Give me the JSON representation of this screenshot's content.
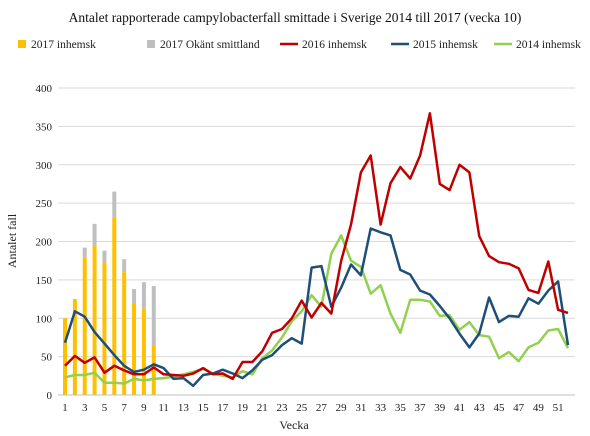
{
  "chart_data": {
    "type": "bar+line",
    "title": "Antalet  rapporterade campylobacterfall smittade i Sverige 2014 till  2017 (vecka 10)",
    "xlabel": "Vecka",
    "ylabel": "Antalet fall",
    "ylim": [
      0,
      400
    ],
    "yticks": [
      0,
      50,
      100,
      150,
      200,
      250,
      300,
      350,
      400
    ],
    "xlim": [
      1,
      52
    ],
    "xticks": [
      1,
      3,
      5,
      7,
      9,
      11,
      13,
      15,
      17,
      19,
      21,
      23,
      25,
      27,
      29,
      31,
      33,
      35,
      37,
      39,
      41,
      43,
      45,
      47,
      49,
      51
    ],
    "grid": "horizontal",
    "legend_position": "top",
    "colors": {
      "bar_2017_inhemsk": "#ffc000",
      "bar_2017_okant": "#bfbfbf",
      "line_2016": "#c00000",
      "line_2015": "#1f4e79",
      "line_2014": "#92d050"
    },
    "stacked_bars": {
      "x": [
        1,
        2,
        3,
        4,
        5,
        6,
        7,
        8,
        9,
        10
      ],
      "series": [
        {
          "name": "2017 inhemsk",
          "values": [
            100,
            125,
            180,
            195,
            173,
            232,
            160,
            120,
            113,
            65
          ]
        },
        {
          "name": "2017 Okänt smittland",
          "values": [
            0,
            0,
            12,
            28,
            15,
            33,
            17,
            18,
            34,
            77
          ]
        }
      ]
    },
    "lines": [
      {
        "name": "2016 inhemsk",
        "values": [
          38,
          51,
          42,
          49,
          29,
          38,
          32,
          27,
          27,
          36,
          27,
          26,
          25,
          28,
          35,
          27,
          28,
          21,
          43,
          43,
          57,
          81,
          86,
          100,
          123,
          101,
          120,
          106,
          175,
          222,
          290,
          312,
          222,
          276,
          297,
          282,
          312,
          367,
          275,
          267,
          300,
          290,
          207,
          181,
          173,
          171,
          165,
          137,
          133,
          174,
          111,
          107
        ]
      },
      {
        "name": "2015 inhemsk",
        "values": [
          68,
          109,
          102,
          82,
          67,
          52,
          38,
          30,
          33,
          40,
          35,
          21,
          22,
          12,
          26,
          28,
          33,
          28,
          22,
          32,
          46,
          52,
          65,
          74,
          67,
          166,
          168,
          115,
          140,
          170,
          156,
          217,
          212,
          208,
          163,
          157,
          136,
          131,
          116,
          100,
          80,
          62,
          80,
          127,
          95,
          103,
          102,
          126,
          119,
          136,
          148,
          65
        ]
      },
      {
        "name": "2014 inhemsk",
        "values": [
          23,
          26,
          26,
          29,
          16,
          16,
          15,
          21,
          19,
          21,
          22,
          24,
          27,
          30,
          34,
          28,
          25,
          23,
          31,
          27,
          48,
          58,
          75,
          96,
          109,
          130,
          115,
          184,
          208,
          175,
          167,
          132,
          143,
          106,
          81,
          124,
          124,
          122,
          103,
          104,
          85,
          95,
          78,
          76,
          48,
          56,
          44,
          62,
          68,
          84,
          86,
          61
        ]
      }
    ]
  },
  "legend": [
    {
      "label": "2017 inhemsk",
      "kind": "box",
      "color": "#ffc000"
    },
    {
      "label": "2017 Okänt smittland",
      "kind": "box",
      "color": "#bfbfbf"
    },
    {
      "label": "2016 inhemsk",
      "kind": "line",
      "color": "#c00000"
    },
    {
      "label": "2015 inhemsk",
      "kind": "line",
      "color": "#1f4e79"
    },
    {
      "label": "2014 inhemsk",
      "kind": "line",
      "color": "#92d050"
    }
  ]
}
